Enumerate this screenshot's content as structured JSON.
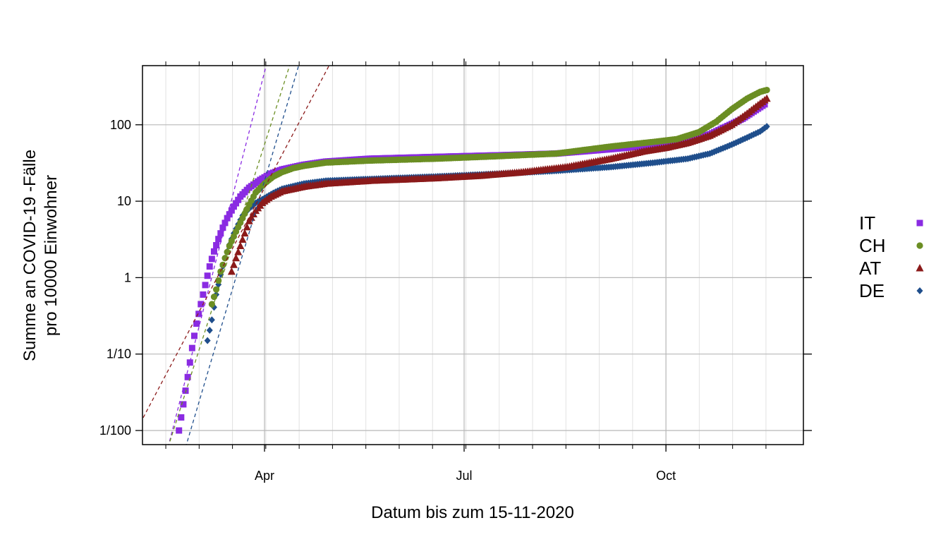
{
  "chart_data": {
    "type": "scatter",
    "y_scale": "log10",
    "xlabel": "Datum bis zum 15-11-2020",
    "ylabel_line1": "Summe an COVID-19 -Fälle",
    "ylabel_line2": "pro 10000 Einwohner",
    "x_ticks": [
      {
        "day": 92,
        "label": "Apr"
      },
      {
        "day": 183,
        "label": "Jul"
      },
      {
        "day": 275,
        "label": "Oct"
      }
    ],
    "y_ticks": [
      {
        "value": 100,
        "label": "100"
      },
      {
        "value": 10,
        "label": "10"
      },
      {
        "value": 1,
        "label": "1"
      },
      {
        "value": 0.1,
        "label": "1/10"
      },
      {
        "value": 0.01,
        "label": "1/100"
      }
    ],
    "x_range_day": [
      35,
      338
    ],
    "y_range": [
      0.007,
      600
    ],
    "grid": true,
    "legend_position": "right",
    "series": [
      {
        "name": "IT",
        "color": "#8a2be2",
        "marker": "square",
        "start_day": 53,
        "end_day": 320,
        "points": [
          [
            53,
            0.01
          ],
          [
            55,
            0.022
          ],
          [
            57,
            0.05
          ],
          [
            59,
            0.12
          ],
          [
            61,
            0.25
          ],
          [
            63,
            0.45
          ],
          [
            65,
            0.8
          ],
          [
            67,
            1.4
          ],
          [
            69,
            2.2
          ],
          [
            71,
            3.2
          ],
          [
            73,
            4.5
          ],
          [
            75,
            6
          ],
          [
            78,
            8.5
          ],
          [
            81,
            11.5
          ],
          [
            85,
            15
          ],
          [
            90,
            19
          ],
          [
            95,
            23
          ],
          [
            100,
            26
          ],
          [
            110,
            30
          ],
          [
            120,
            33
          ],
          [
            140,
            36
          ],
          [
            170,
            38
          ],
          [
            200,
            40
          ],
          [
            225,
            42
          ],
          [
            250,
            48
          ],
          [
            270,
            54
          ],
          [
            280,
            58
          ],
          [
            295,
            75
          ],
          [
            310,
            120
          ],
          [
            320,
            185
          ]
        ]
      },
      {
        "name": "CH",
        "color": "#6b8e23",
        "marker": "circle",
        "start_day": 68,
        "end_day": 321,
        "points": [
          [
            68,
            0.45
          ],
          [
            70,
            0.7
          ],
          [
            72,
            1.2
          ],
          [
            74,
            1.8
          ],
          [
            76,
            2.6
          ],
          [
            79,
            4
          ],
          [
            82,
            6
          ],
          [
            85,
            9
          ],
          [
            88,
            13
          ],
          [
            92,
            17
          ],
          [
            96,
            21
          ],
          [
            100,
            24
          ],
          [
            105,
            27
          ],
          [
            110,
            29
          ],
          [
            120,
            32
          ],
          [
            140,
            34
          ],
          [
            170,
            36
          ],
          [
            200,
            39
          ],
          [
            225,
            42
          ],
          [
            250,
            52
          ],
          [
            270,
            60
          ],
          [
            280,
            65
          ],
          [
            290,
            80
          ],
          [
            298,
            110
          ],
          [
            305,
            160
          ],
          [
            312,
            220
          ],
          [
            318,
            270
          ],
          [
            321,
            285
          ]
        ]
      },
      {
        "name": "AT",
        "color": "#8b1a1a",
        "marker": "triangle",
        "start_day": 77,
        "end_day": 321,
        "points": [
          [
            77,
            1.2
          ],
          [
            79,
            1.8
          ],
          [
            81,
            2.6
          ],
          [
            83,
            3.8
          ],
          [
            85,
            5.5
          ],
          [
            88,
            7.5
          ],
          [
            91,
            9.5
          ],
          [
            95,
            11.5
          ],
          [
            100,
            13.5
          ],
          [
            110,
            15.5
          ],
          [
            120,
            17
          ],
          [
            140,
            18.5
          ],
          [
            170,
            20
          ],
          [
            190,
            21.5
          ],
          [
            210,
            24
          ],
          [
            230,
            28
          ],
          [
            250,
            36
          ],
          [
            265,
            45
          ],
          [
            275,
            50
          ],
          [
            285,
            58
          ],
          [
            295,
            72
          ],
          [
            305,
            100
          ],
          [
            312,
            140
          ],
          [
            318,
            190
          ],
          [
            321,
            220
          ]
        ]
      },
      {
        "name": "DE",
        "color": "#1f4e8c",
        "marker": "diamond",
        "start_day": 66,
        "end_day": 321,
        "points": [
          [
            66,
            0.15
          ],
          [
            68,
            0.28
          ],
          [
            70,
            0.6
          ],
          [
            72,
            1.1
          ],
          [
            74,
            1.8
          ],
          [
            76,
            2.7
          ],
          [
            78,
            3.8
          ],
          [
            80,
            5
          ],
          [
            82,
            6.5
          ],
          [
            85,
            8
          ],
          [
            88,
            9.5
          ],
          [
            92,
            11
          ],
          [
            96,
            12.8
          ],
          [
            100,
            14.5
          ],
          [
            110,
            17
          ],
          [
            120,
            18.5
          ],
          [
            140,
            19.5
          ],
          [
            170,
            21
          ],
          [
            200,
            23
          ],
          [
            225,
            25
          ],
          [
            250,
            28
          ],
          [
            270,
            32
          ],
          [
            285,
            36
          ],
          [
            295,
            42
          ],
          [
            305,
            55
          ],
          [
            312,
            68
          ],
          [
            318,
            82
          ],
          [
            321,
            95
          ]
        ]
      }
    ],
    "fit_lines": [
      {
        "color": "#8a2be2",
        "p1": [
          48,
          0.006
        ],
        "p2": [
          94,
          820
        ]
      },
      {
        "color": "#6b8e23",
        "p1": [
          48,
          0.006
        ],
        "p2": [
          105,
          820
        ]
      },
      {
        "color": "#1f4e8c",
        "p1": [
          56,
          0.006
        ],
        "p2": [
          109,
          820
        ]
      },
      {
        "color": "#8b1a1a",
        "p1": [
          34,
          0.0105
        ],
        "p2": [
          124,
          820
        ]
      }
    ]
  }
}
